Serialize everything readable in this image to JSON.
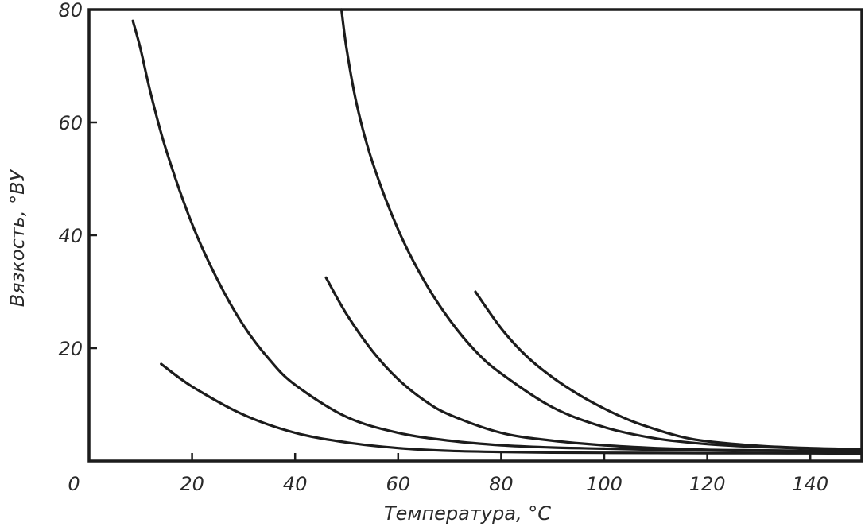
{
  "chart_data": {
    "type": "line",
    "title": "",
    "xlabel": "Температура, °С",
    "ylabel": "Вязкость, °ВУ",
    "xlim": [
      0,
      150
    ],
    "ylim": [
      0,
      80
    ],
    "x_ticks": [
      "0",
      "20",
      "40",
      "60",
      "80",
      "100",
      "120",
      "140"
    ],
    "y_ticks": [
      "20",
      "40",
      "60",
      "80"
    ],
    "grid": false,
    "legend": "none",
    "colors": {
      "line": "#1c1c1c",
      "background": "#ffffff"
    },
    "series": [
      {
        "x": [
          14,
          20,
          30,
          40,
          50,
          60,
          70,
          80,
          90,
          100,
          110,
          120,
          130,
          140,
          150
        ],
        "y": [
          17.2,
          13.2,
          8.2,
          5.0,
          3.3,
          2.3,
          1.8,
          1.6,
          1.5,
          1.45,
          1.42,
          1.4,
          1.38,
          1.36,
          1.35
        ]
      },
      {
        "x": [
          8.5,
          10,
          12,
          15,
          20,
          25,
          30,
          35,
          40,
          50,
          60,
          70,
          80,
          90,
          100,
          110,
          120,
          130,
          140,
          150
        ],
        "y": [
          78,
          73,
          65,
          55,
          42,
          32,
          24,
          18,
          13.5,
          7.8,
          5.0,
          3.6,
          2.8,
          2.4,
          2.2,
          2.0,
          1.9,
          1.8,
          1.75,
          1.7
        ]
      },
      {
        "x": [
          46,
          50,
          55,
          60,
          65,
          70,
          80,
          90,
          100,
          110,
          120,
          130,
          140,
          150
        ],
        "y": [
          32.5,
          26,
          19.5,
          14.5,
          10.8,
          8.2,
          5.0,
          3.6,
          2.8,
          2.3,
          2.0,
          1.9,
          1.8,
          1.75
        ]
      },
      {
        "x": [
          49,
          50,
          52,
          55,
          60,
          65,
          70,
          75,
          80,
          90,
          100,
          110,
          120,
          130,
          140,
          150
        ],
        "y": [
          80,
          73,
          63,
          53,
          41,
          32,
          25,
          19.5,
          15.5,
          9.5,
          6.0,
          4.0,
          3.0,
          2.5,
          2.2,
          2.0
        ]
      },
      {
        "x": [
          75,
          80,
          85,
          90,
          95,
          100,
          105,
          110,
          115,
          120,
          130,
          140,
          150
        ],
        "y": [
          30,
          23.5,
          18.5,
          14.8,
          11.8,
          9.3,
          7.2,
          5.6,
          4.3,
          3.5,
          2.7,
          2.3,
          2.1
        ]
      }
    ]
  }
}
